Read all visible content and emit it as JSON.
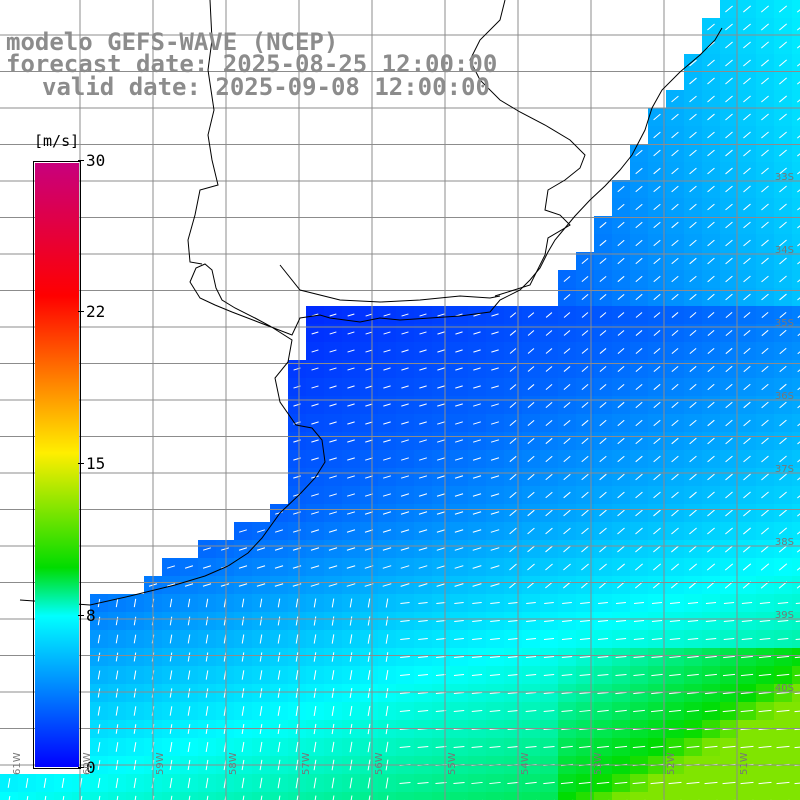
{
  "title": {
    "line1": "modelo GEFS-WAVE (NCEP)",
    "line2": "forecast date: 2025-08-25 12:00:00",
    "line3": "valid date: 2025-09-08 12:00:00"
  },
  "colorbar": {
    "units": "[m/s]",
    "ticks": [
      "30",
      "22",
      "15",
      "8",
      "0"
    ],
    "tick_values": [
      30,
      22,
      15,
      8,
      0
    ],
    "range": [
      0,
      30
    ],
    "colors": [
      "#0000ff",
      "#0090ff",
      "#00ffff",
      "#00dc00",
      "#ffee00",
      "#ff8a00",
      "#ff0000",
      "#c8007d"
    ]
  },
  "lat_labels": [
    "33S",
    "34S",
    "35S",
    "36S",
    "37S",
    "38S",
    "39S",
    "40S"
  ],
  "lon_labels": [
    "61W",
    "60W",
    "59W",
    "58W",
    "57W",
    "56W",
    "55W",
    "54W",
    "53W",
    "52W",
    "51W"
  ],
  "colors": {
    "land": "#ffffff",
    "coast": "#000000",
    "grid": "#8c8c8c",
    "arrow": "#ffffff",
    "title": "#8c8c8c"
  }
}
